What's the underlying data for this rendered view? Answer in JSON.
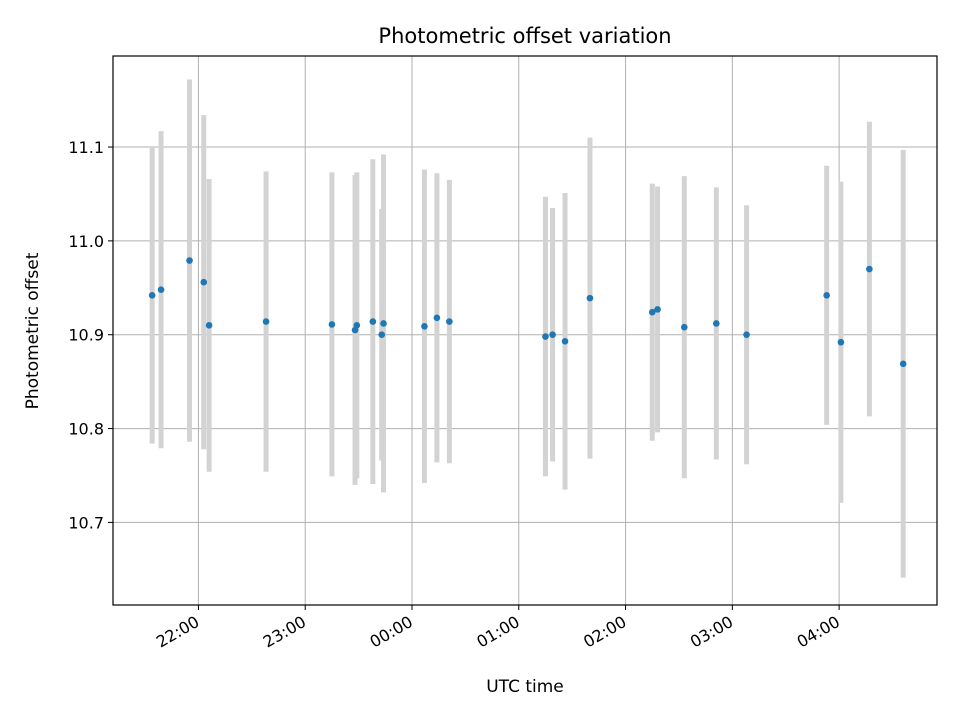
{
  "chart_data": {
    "type": "scatter",
    "title": "Photometric offset variation",
    "xlabel": "UTC time",
    "ylabel": "Photometric offset",
    "x_ticks": [
      "22:00",
      "23:00",
      "00:00",
      "01:00",
      "02:00",
      "03:00",
      "04:00"
    ],
    "y_ticks": [
      "10.7",
      "10.8",
      "10.9",
      "11.0",
      "11.1"
    ],
    "xlim": [
      "21:12",
      "04:55"
    ],
    "ylim": [
      10.612,
      11.197
    ],
    "grid": true,
    "colors": {
      "point": "#1f77b4",
      "errorbar": "#d3d3d3",
      "grid": "#b0b0b0"
    },
    "series": [
      {
        "error_style": "symmetric errorbars",
        "points": [
          {
            "x": "21:34",
            "y": 10.942,
            "err": 0.158
          },
          {
            "x": "21:39",
            "y": 10.948,
            "err": 0.169
          },
          {
            "x": "21:55",
            "y": 10.979,
            "err": 0.193
          },
          {
            "x": "22:03",
            "y": 10.956,
            "err": 0.178
          },
          {
            "x": "22:06",
            "y": 10.91,
            "err": 0.156
          },
          {
            "x": "22:38",
            "y": 10.914,
            "err": 0.16
          },
          {
            "x": "23:15",
            "y": 10.911,
            "err": 0.162
          },
          {
            "x": "23:28",
            "y": 10.905,
            "err": 0.165
          },
          {
            "x": "23:29",
            "y": 10.91,
            "err": 0.163
          },
          {
            "x": "23:38",
            "y": 10.914,
            "err": 0.173
          },
          {
            "x": "23:43",
            "y": 10.9,
            "err": 0.134
          },
          {
            "x": "23:44",
            "y": 10.912,
            "err": 0.18
          },
          {
            "x": "00:07",
            "y": 10.909,
            "err": 0.167
          },
          {
            "x": "00:14",
            "y": 10.918,
            "err": 0.154
          },
          {
            "x": "00:21",
            "y": 10.914,
            "err": 0.151
          },
          {
            "x": "01:15",
            "y": 10.898,
            "err": 0.149
          },
          {
            "x": "01:19",
            "y": 10.9,
            "err": 0.135
          },
          {
            "x": "01:26",
            "y": 10.893,
            "err": 0.158
          },
          {
            "x": "01:40",
            "y": 10.939,
            "err": 0.171
          },
          {
            "x": "02:15",
            "y": 10.924,
            "err": 0.137
          },
          {
            "x": "02:18",
            "y": 10.927,
            "err": 0.131
          },
          {
            "x": "02:33",
            "y": 10.908,
            "err": 0.161
          },
          {
            "x": "02:51",
            "y": 10.912,
            "err": 0.145
          },
          {
            "x": "03:08",
            "y": 10.9,
            "err": 0.138
          },
          {
            "x": "03:53",
            "y": 10.942,
            "err": 0.138
          },
          {
            "x": "04:01",
            "y": 10.892,
            "err": 0.171
          },
          {
            "x": "04:17",
            "y": 10.97,
            "err": 0.157
          },
          {
            "x": "04:36",
            "y": 10.869,
            "err": 0.228
          }
        ]
      }
    ]
  }
}
